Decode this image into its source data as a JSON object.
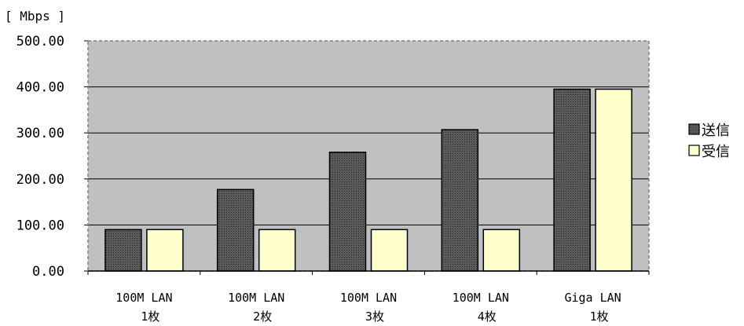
{
  "chart_data": {
    "type": "bar",
    "ylabel": "[ Mbps ]",
    "ylim": [
      0,
      500
    ],
    "yticks": [
      "0.00",
      "100.00",
      "200.00",
      "300.00",
      "400.00",
      "500.00"
    ],
    "categories": [
      [
        "100M LAN",
        "1枚"
      ],
      [
        "100M LAN",
        "2枚"
      ],
      [
        "100M LAN",
        "3枚"
      ],
      [
        "100M LAN",
        "4枚"
      ],
      [
        "Giga LAN",
        "1枚"
      ]
    ],
    "series": [
      {
        "name": "送信",
        "color": "#595959",
        "values": [
          90,
          177,
          258,
          307,
          395
        ]
      },
      {
        "name": "受信",
        "color": "#ffffcc",
        "values": [
          90,
          90,
          90,
          90,
          395
        ]
      }
    ],
    "plot_background": "#c0c0c0",
    "grid": true,
    "legend_position": "right"
  }
}
